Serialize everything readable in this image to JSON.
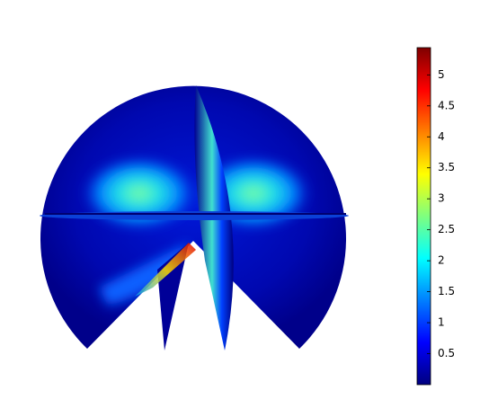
{
  "chart_data": {
    "type": "surface",
    "colormap": "jet",
    "clim": [
      0,
      5.44
    ],
    "cticks": [
      0.5,
      1,
      1.5,
      2,
      2.5,
      3,
      3.5,
      4,
      4.5,
      5
    ]
  }
}
